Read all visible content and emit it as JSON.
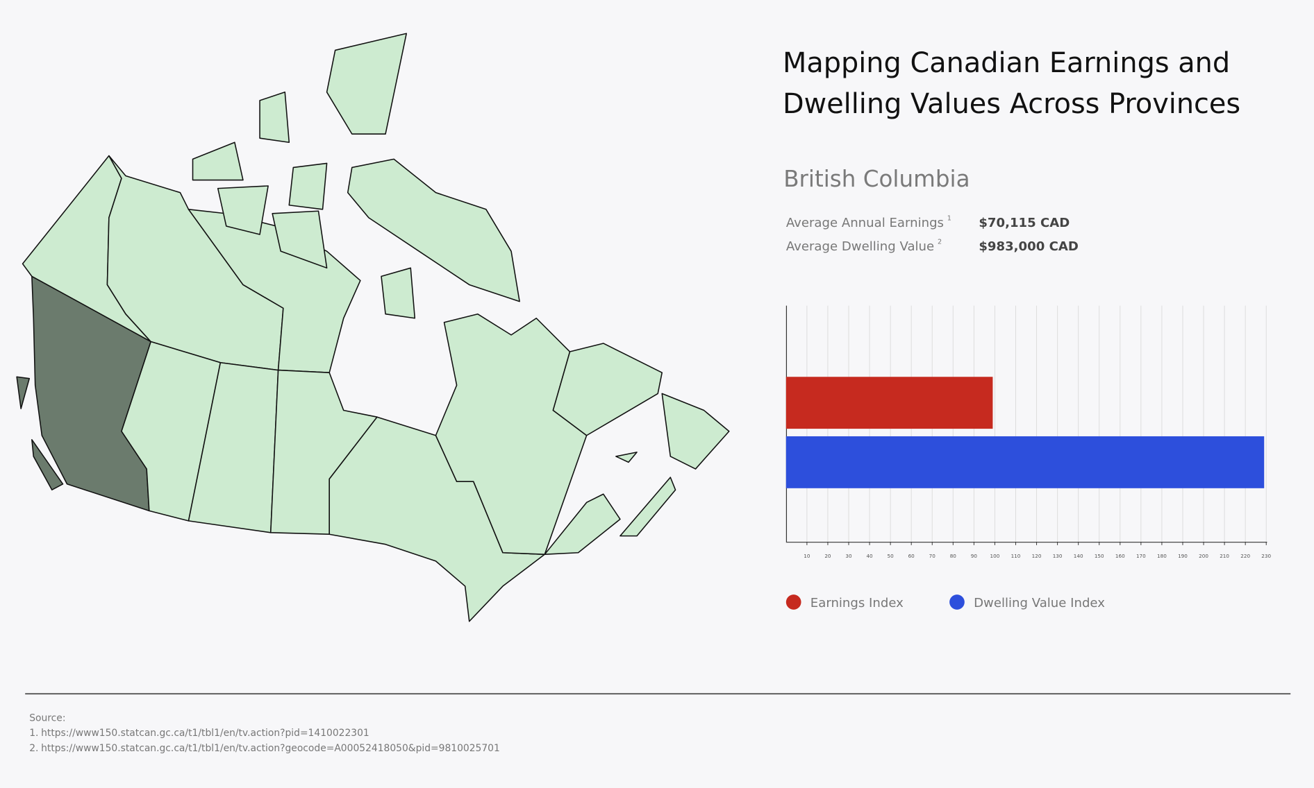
{
  "title": [
    "Mapping Canadian Earnings and",
    "Dwelling Values Across Provinces"
  ],
  "selected_province": "British Columbia",
  "stats": [
    {
      "label": "Average Annual Earnings",
      "note": "1",
      "value": "$70,115 CAD"
    },
    {
      "label": "Average Dwelling Value",
      "note": "2",
      "value": "$983,000 CAD"
    }
  ],
  "chart_data": {
    "type": "bar",
    "orientation": "horizontal",
    "categories": [
      null
    ],
    "series": [
      {
        "name": "Earnings Index",
        "color": "#c62a1f",
        "values": [
          99
        ]
      },
      {
        "name": "Dwelling Value Index",
        "color": "#2d4fdc",
        "values": [
          229
        ]
      }
    ],
    "xlim": [
      0,
      230
    ],
    "xticks": [
      10,
      20,
      30,
      40,
      50,
      60,
      70,
      80,
      90,
      100,
      110,
      120,
      130,
      140,
      150,
      160,
      170,
      180,
      190,
      200,
      210,
      220,
      230
    ],
    "grid": true,
    "legend": "bottom"
  },
  "source": {
    "label": "Source:",
    "items": [
      {
        "number": "1.",
        "url": "https://www150.statcan.gc.ca/t1/tbl1/en/tv.action?pid=1410022301"
      },
      {
        "number": "2.",
        "url": "https://www150.statcan.gc.ca/t1/tbl1/en/tv.action?geocode=A00052418050&pid=9810025701"
      }
    ]
  }
}
